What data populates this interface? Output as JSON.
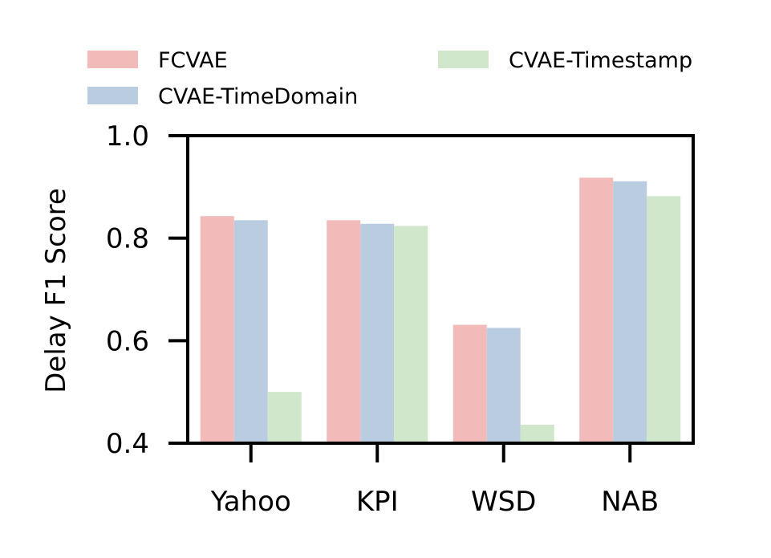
{
  "chart_data": {
    "type": "bar",
    "title": "",
    "xlabel": "",
    "ylabel": "Delay F1 Score",
    "ylim": [
      0.4,
      1.0
    ],
    "yticks": [
      "0.4",
      "0.6",
      "0.8",
      "1.0"
    ],
    "categories": [
      "Yahoo",
      "KPI",
      "WSD",
      "NAB"
    ],
    "series": [
      {
        "name": "FCVAE",
        "color": "#f2bab8",
        "values": [
          0.843,
          0.835,
          0.631,
          0.918
        ]
      },
      {
        "name": "CVAE-TimeDomain",
        "color": "#b9cce0",
        "values": [
          0.835,
          0.828,
          0.625,
          0.911
        ]
      },
      {
        "name": "CVAE-Timestamp",
        "color": "#d1e7cb",
        "values": [
          0.5,
          0.824,
          0.436,
          0.882
        ]
      }
    ],
    "legend_position": "top",
    "grid": false
  }
}
